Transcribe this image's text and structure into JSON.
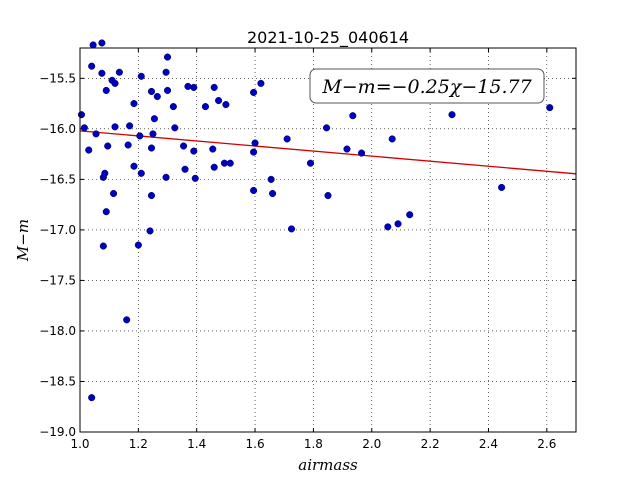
{
  "chart_data": {
    "type": "scatter",
    "title": "2021-10-25_040614",
    "xlabel": "airmass",
    "ylabel": "M−m",
    "xlim": [
      1.0,
      2.7
    ],
    "ylim": [
      -19.0,
      -15.2
    ],
    "y_inverted": true,
    "grid": true,
    "x_ticks": [
      "1.0",
      "1.2",
      "1.4",
      "1.6",
      "1.8",
      "2.0",
      "2.2",
      "2.4",
      "2.6"
    ],
    "y_ticks": [
      "−15.5",
      "−16.0",
      "−16.5",
      "−17.0",
      "−17.5",
      "−18.0",
      "−18.5",
      "−19.0"
    ],
    "annotation": "M−m=−0.25χ−15.77",
    "point_color": "#0000bf",
    "fit_color": "#d40000",
    "fit_line": {
      "slope": -0.25,
      "intercept": -15.77
    },
    "points": [
      {
        "x": 1.005,
        "y": -15.86
      },
      {
        "x": 1.015,
        "y": -15.99
      },
      {
        "x": 1.03,
        "y": -16.21
      },
      {
        "x": 1.04,
        "y": -15.38
      },
      {
        "x": 1.045,
        "y": -15.17
      },
      {
        "x": 1.055,
        "y": -16.05
      },
      {
        "x": 1.04,
        "y": -18.66
      },
      {
        "x": 1.075,
        "y": -15.15
      },
      {
        "x": 1.075,
        "y": -15.45
      },
      {
        "x": 1.08,
        "y": -16.48
      },
      {
        "x": 1.085,
        "y": -16.44
      },
      {
        "x": 1.08,
        "y": -17.16
      },
      {
        "x": 1.09,
        "y": -15.62
      },
      {
        "x": 1.095,
        "y": -16.17
      },
      {
        "x": 1.09,
        "y": -16.82
      },
      {
        "x": 1.11,
        "y": -15.52
      },
      {
        "x": 1.12,
        "y": -15.55
      },
      {
        "x": 1.115,
        "y": -16.64
      },
      {
        "x": 1.12,
        "y": -15.98
      },
      {
        "x": 1.135,
        "y": -15.44
      },
      {
        "x": 1.16,
        "y": -17.89
      },
      {
        "x": 1.165,
        "y": -16.16
      },
      {
        "x": 1.17,
        "y": -15.97
      },
      {
        "x": 1.185,
        "y": -15.75
      },
      {
        "x": 1.185,
        "y": -16.37
      },
      {
        "x": 1.2,
        "y": -17.15
      },
      {
        "x": 1.205,
        "y": -16.07
      },
      {
        "x": 1.21,
        "y": -16.44
      },
      {
        "x": 1.21,
        "y": -15.48
      },
      {
        "x": 1.24,
        "y": -17.01
      },
      {
        "x": 1.245,
        "y": -16.19
      },
      {
        "x": 1.245,
        "y": -15.63
      },
      {
        "x": 1.245,
        "y": -16.66
      },
      {
        "x": 1.25,
        "y": -16.05
      },
      {
        "x": 1.255,
        "y": -15.9
      },
      {
        "x": 1.265,
        "y": -15.68
      },
      {
        "x": 1.295,
        "y": -16.48
      },
      {
        "x": 1.295,
        "y": -15.44
      },
      {
        "x": 1.3,
        "y": -15.29
      },
      {
        "x": 1.3,
        "y": -15.62
      },
      {
        "x": 1.32,
        "y": -15.78
      },
      {
        "x": 1.325,
        "y": -15.99
      },
      {
        "x": 1.355,
        "y": -16.17
      },
      {
        "x": 1.36,
        "y": -16.4
      },
      {
        "x": 1.37,
        "y": -15.58
      },
      {
        "x": 1.39,
        "y": -15.59
      },
      {
        "x": 1.39,
        "y": -16.22
      },
      {
        "x": 1.395,
        "y": -16.49
      },
      {
        "x": 1.43,
        "y": -15.78
      },
      {
        "x": 1.455,
        "y": -16.2
      },
      {
        "x": 1.46,
        "y": -15.59
      },
      {
        "x": 1.46,
        "y": -16.38
      },
      {
        "x": 1.475,
        "y": -15.72
      },
      {
        "x": 1.495,
        "y": -16.34
      },
      {
        "x": 1.5,
        "y": -15.76
      },
      {
        "x": 1.515,
        "y": -16.34
      },
      {
        "x": 1.595,
        "y": -15.64
      },
      {
        "x": 1.595,
        "y": -16.23
      },
      {
        "x": 1.6,
        "y": -16.14
      },
      {
        "x": 1.595,
        "y": -16.61
      },
      {
        "x": 1.62,
        "y": -15.55
      },
      {
        "x": 1.655,
        "y": -16.5
      },
      {
        "x": 1.66,
        "y": -16.64
      },
      {
        "x": 1.71,
        "y": -16.1
      },
      {
        "x": 1.725,
        "y": -16.99
      },
      {
        "x": 1.79,
        "y": -16.34
      },
      {
        "x": 1.845,
        "y": -15.99
      },
      {
        "x": 1.85,
        "y": -16.66
      },
      {
        "x": 1.915,
        "y": -16.2
      },
      {
        "x": 1.935,
        "y": -15.87
      },
      {
        "x": 1.965,
        "y": -16.24
      },
      {
        "x": 2.055,
        "y": -16.97
      },
      {
        "x": 2.07,
        "y": -16.1
      },
      {
        "x": 2.09,
        "y": -16.94
      },
      {
        "x": 2.13,
        "y": -16.85
      },
      {
        "x": 2.275,
        "y": -15.86
      },
      {
        "x": 2.445,
        "y": -16.58
      },
      {
        "x": 2.61,
        "y": -15.79
      }
    ]
  }
}
